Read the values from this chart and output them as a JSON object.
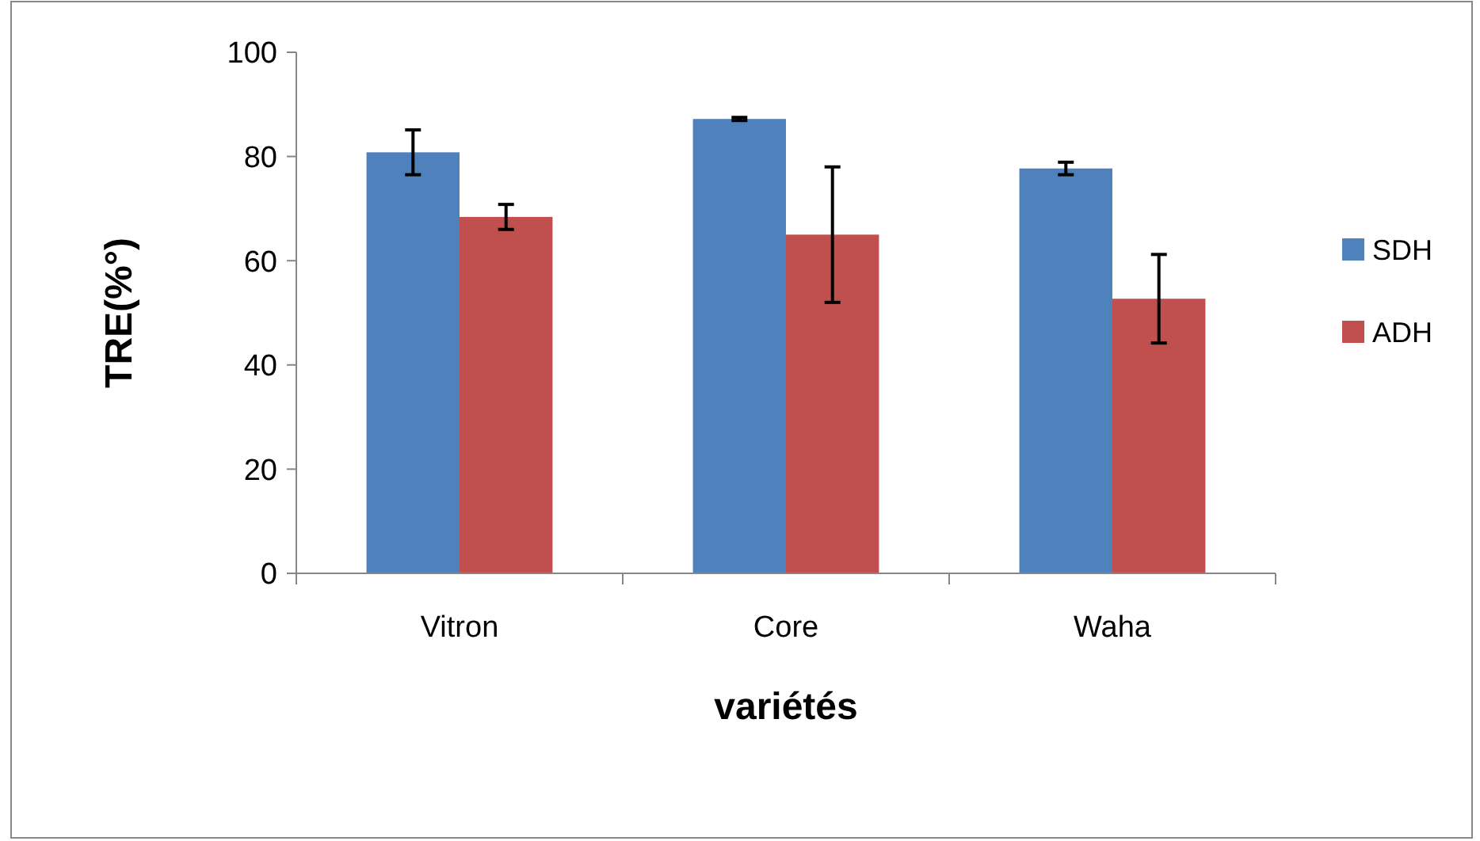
{
  "chart_data": {
    "type": "bar",
    "xlabel": "variétés",
    "ylabel": "TRE(%°)",
    "categories": [
      "Vitron",
      "Core",
      "Waha"
    ],
    "series": [
      {
        "name": "SDH",
        "color": "#4f81bd",
        "values": [
          80.8,
          87.2,
          77.7
        ],
        "errors": [
          4.3,
          0.3,
          1.2
        ]
      },
      {
        "name": "ADH",
        "color": "#c0504d",
        "values": [
          68.4,
          65.0,
          52.7
        ],
        "errors": [
          2.4,
          13,
          8.5
        ]
      }
    ],
    "ylim": [
      0,
      100
    ],
    "yticks": [
      0,
      20,
      40,
      60,
      80,
      100
    ],
    "grid": false,
    "legend": "right"
  }
}
